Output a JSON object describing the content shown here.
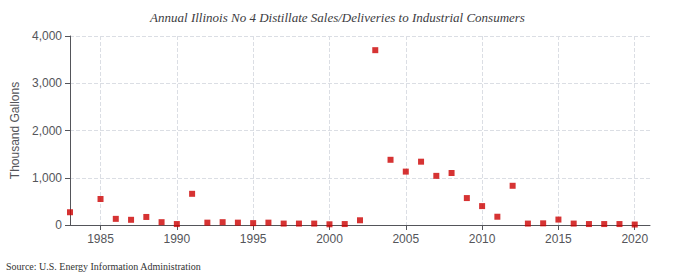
{
  "chart_data": {
    "type": "scatter",
    "title": "Annual Illinois No 4 Distillate Sales/Deliveries to Industrial Consumers",
    "ylabel": "Thousand Gallons",
    "annotations": [
      "Source: U.S. Energy Information Administration"
    ],
    "color": "#cc0000",
    "marker": "square",
    "grid": true,
    "xlim": [
      1983,
      2021
    ],
    "xticks": [
      1985,
      1990,
      1995,
      2000,
      2005,
      2010,
      2015,
      2020
    ],
    "ylim": [
      0,
      4000
    ],
    "yticks": [
      0,
      {
        "value": 1000,
        "label": "1,000"
      },
      {
        "value": 2000,
        "label": "2,000"
      },
      {
        "value": 3000,
        "label": "3,000"
      },
      {
        "value": 4000,
        "label": "4,000"
      }
    ],
    "x": [
      1983,
      1985,
      1986,
      1987,
      1988,
      1989,
      1990,
      1991,
      1992,
      1993,
      1994,
      1995,
      1996,
      1997,
      1998,
      1999,
      2000,
      2001,
      2002,
      2003,
      2004,
      2005,
      2006,
      2007,
      2008,
      2009,
      2010,
      2011,
      2012,
      2013,
      2014,
      2015,
      2016,
      2017,
      2018,
      2019,
      2020
    ],
    "values": [
      270,
      550,
      130,
      110,
      170,
      60,
      20,
      660,
      50,
      60,
      50,
      40,
      50,
      30,
      30,
      30,
      15,
      20,
      100,
      3700,
      1380,
      1130,
      1340,
      1040,
      1100,
      570,
      400,
      175,
      830,
      30,
      35,
      115,
      30,
      20,
      20,
      20,
      10
    ]
  }
}
